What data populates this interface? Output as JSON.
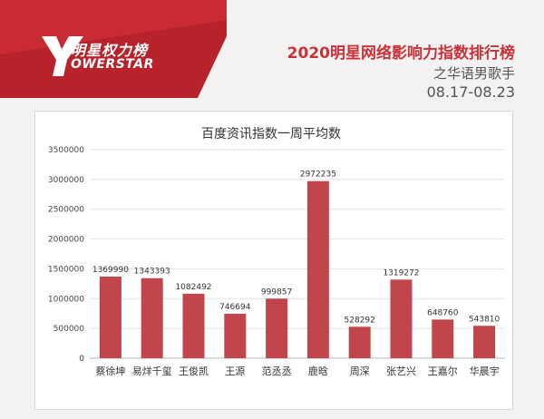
{
  "header": {
    "brand_cn": "明星权力榜",
    "brand_en": "OWERSTAR",
    "title": "2020明星网络影响力指数排行榜",
    "subtitle": "之华语男歌手",
    "date_range": "08.17-08.23"
  },
  "colors": {
    "accent": "#c8323a",
    "bar": "#c0464c",
    "banner_dark": "#b8222b"
  },
  "chart_data": {
    "type": "bar",
    "title": "百度资讯指数一周平均数",
    "xlabel": "",
    "ylabel": "",
    "ylim": [
      0,
      3500000
    ],
    "yticks": [
      "3500000",
      "3000000",
      "2500000",
      "2000000",
      "1500000",
      "1000000",
      "500000",
      "0"
    ],
    "grid": true,
    "categories": [
      "蔡徐坤",
      "易烊千玺",
      "王俊凯",
      "王源",
      "范丞丞",
      "鹿晗",
      "周深",
      "张艺兴",
      "王嘉尔",
      "华晨宇"
    ],
    "values": [
      1369990,
      1343393,
      1082492,
      746694,
      999857,
      2972235,
      528292,
      1319272,
      648760,
      543810
    ],
    "value_labels": [
      "1369990",
      "1343393",
      "1082492",
      "746694",
      "999857",
      "2972235",
      "528292",
      "1319272",
      "648760",
      "543810"
    ]
  }
}
